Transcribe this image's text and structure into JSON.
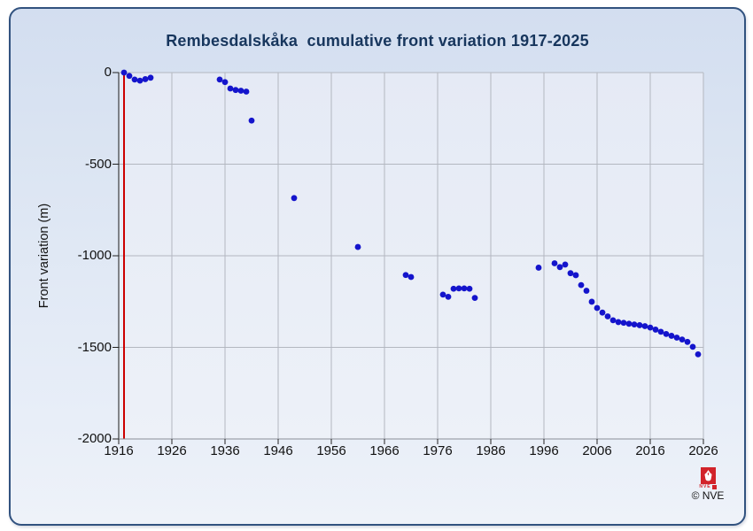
{
  "card": {
    "border_color": "#31527f",
    "background_top": "#d3def0",
    "background_bottom": "#eef2f9"
  },
  "chart_data": {
    "type": "scatter",
    "title": "Rembesdalskåka  cumulative front variation 1917-2025",
    "title_color": "#17365d",
    "xlabel": "",
    "ylabel": "Front variation (m)",
    "xlim": [
      1916,
      2026
    ],
    "ylim": [
      -2000,
      0
    ],
    "xticks": [
      1916,
      1926,
      1936,
      1946,
      1956,
      1966,
      1976,
      1986,
      1996,
      2006,
      2016,
      2026
    ],
    "yticks": [
      0,
      -500,
      -1000,
      -1500,
      -2000
    ],
    "grid": true,
    "legend": false,
    "colors": {
      "point": "#1414cc",
      "reference_line": "#cc0000",
      "grid": "#b3b7c0",
      "axis_left": "#1a1a1a",
      "axis_bottom": "#8a8f98",
      "tick": "#222222"
    },
    "reference_line": {
      "x": 1917
    },
    "series": [
      {
        "name": "Cumulative front variation (m)",
        "points": [
          [
            1917,
            0
          ],
          [
            1918,
            -18
          ],
          [
            1919,
            -38
          ],
          [
            1920,
            -44
          ],
          [
            1921,
            -36
          ],
          [
            1922,
            -28
          ],
          [
            1935,
            -38
          ],
          [
            1936,
            -52
          ],
          [
            1937,
            -87
          ],
          [
            1938,
            -95
          ],
          [
            1939,
            -99
          ],
          [
            1940,
            -104
          ],
          [
            1941,
            -262
          ],
          [
            1949,
            -685
          ],
          [
            1961,
            -952
          ],
          [
            1970,
            -1105
          ],
          [
            1971,
            -1116
          ],
          [
            1977,
            -1212
          ],
          [
            1978,
            -1224
          ],
          [
            1979,
            -1180
          ],
          [
            1980,
            -1178
          ],
          [
            1981,
            -1178
          ],
          [
            1982,
            -1180
          ],
          [
            1983,
            -1230
          ],
          [
            1995,
            -1065
          ],
          [
            1998,
            -1041
          ],
          [
            1999,
            -1062
          ],
          [
            2000,
            -1048
          ],
          [
            2001,
            -1095
          ],
          [
            2002,
            -1106
          ],
          [
            2003,
            -1160
          ],
          [
            2004,
            -1191
          ],
          [
            2005,
            -1251
          ],
          [
            2006,
            -1285
          ],
          [
            2007,
            -1310
          ],
          [
            2008,
            -1331
          ],
          [
            2009,
            -1352
          ],
          [
            2010,
            -1362
          ],
          [
            2011,
            -1366
          ],
          [
            2012,
            -1371
          ],
          [
            2013,
            -1375
          ],
          [
            2014,
            -1379
          ],
          [
            2015,
            -1384
          ],
          [
            2016,
            -1392
          ],
          [
            2017,
            -1403
          ],
          [
            2018,
            -1415
          ],
          [
            2019,
            -1427
          ],
          [
            2020,
            -1437
          ],
          [
            2021,
            -1447
          ],
          [
            2022,
            -1457
          ],
          [
            2023,
            -1470
          ],
          [
            2024,
            -1497
          ],
          [
            2025,
            -1538
          ]
        ]
      }
    ]
  },
  "footer": {
    "copyright": "© NVE",
    "logo_text": "NVE",
    "logo_color": "#d2232a"
  }
}
